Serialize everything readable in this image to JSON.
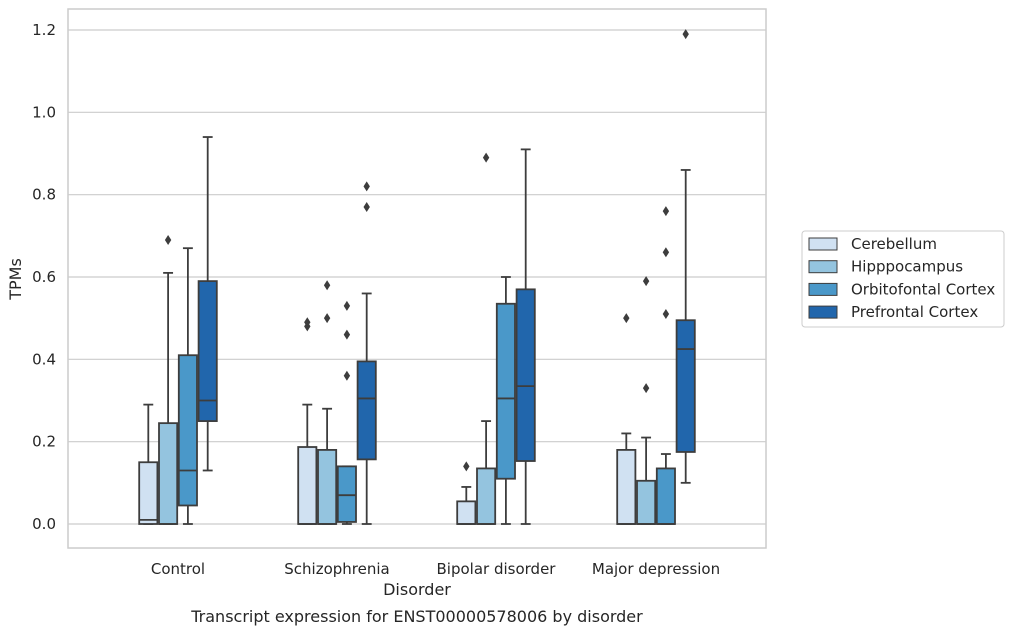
{
  "chart_data": {
    "type": "boxplot",
    "title": "",
    "caption": "Transcript expression for ENST00000578006 by disorder",
    "xlabel": "Disorder",
    "ylabel": "TPMs",
    "ylim": [
      -0.06,
      1.25
    ],
    "yticks": [
      "0.0",
      "0.2",
      "0.4",
      "0.6",
      "0.8",
      "1.0",
      "1.2"
    ],
    "categories": [
      "Control",
      "Schizophrenia",
      "Bipolar disorder",
      "Major depression"
    ],
    "grid": "horizontal",
    "legend_position": "right",
    "series": [
      {
        "name": "Cerebellum",
        "color": "#d0e1f2",
        "boxes": [
          {
            "wlo": 0.0,
            "q1": 0.0,
            "med": 0.01,
            "q3": 0.15,
            "whi": 0.29,
            "outliers": []
          },
          {
            "wlo": 0.0,
            "q1": 0.0,
            "med": 0.0,
            "q3": 0.187,
            "whi": 0.29,
            "outliers": [
              0.48,
              0.49
            ]
          },
          {
            "wlo": 0.0,
            "q1": 0.0,
            "med": 0.0,
            "q3": 0.055,
            "whi": 0.09,
            "outliers": [
              0.14
            ]
          },
          {
            "wlo": 0.0,
            "q1": 0.0,
            "med": 0.0,
            "q3": 0.18,
            "whi": 0.22,
            "outliers": [
              0.5
            ]
          }
        ]
      },
      {
        "name": "Hipppocampus",
        "color": "#94c4df",
        "boxes": [
          {
            "wlo": 0.0,
            "q1": 0.0,
            "med": 0.0,
            "q3": 0.245,
            "whi": 0.61,
            "outliers": [
              0.69
            ]
          },
          {
            "wlo": 0.0,
            "q1": 0.0,
            "med": 0.0,
            "q3": 0.18,
            "whi": 0.28,
            "outliers": [
              0.5,
              0.58
            ]
          },
          {
            "wlo": 0.0,
            "q1": 0.0,
            "med": 0.0,
            "q3": 0.135,
            "whi": 0.25,
            "outliers": [
              0.89
            ]
          },
          {
            "wlo": 0.0,
            "q1": 0.0,
            "med": 0.0,
            "q3": 0.105,
            "whi": 0.21,
            "outliers": [
              0.33,
              0.59
            ]
          }
        ]
      },
      {
        "name": "Orbitofontal Cortex",
        "color": "#4a98c9",
        "boxes": [
          {
            "wlo": 0.0,
            "q1": 0.045,
            "med": 0.13,
            "q3": 0.41,
            "whi": 0.67,
            "outliers": []
          },
          {
            "wlo": 0.0,
            "q1": 0.005,
            "med": 0.07,
            "q3": 0.14,
            "whi": 0.14,
            "outliers": [
              0.36,
              0.46,
              0.53
            ]
          },
          {
            "wlo": 0.0,
            "q1": 0.11,
            "med": 0.305,
            "q3": 0.535,
            "whi": 0.6,
            "outliers": []
          },
          {
            "wlo": 0.0,
            "q1": 0.0,
            "med": 0.0,
            "q3": 0.135,
            "whi": 0.17,
            "outliers": [
              0.51,
              0.66,
              0.76
            ]
          }
        ]
      },
      {
        "name": "Prefrontal Cortex",
        "color": "#2166ac",
        "boxes": [
          {
            "wlo": 0.13,
            "q1": 0.25,
            "med": 0.3,
            "q3": 0.59,
            "whi": 0.94,
            "outliers": []
          },
          {
            "wlo": 0.0,
            "q1": 0.157,
            "med": 0.305,
            "q3": 0.395,
            "whi": 0.56,
            "outliers": [
              0.77,
              0.82
            ]
          },
          {
            "wlo": 0.0,
            "q1": 0.153,
            "med": 0.335,
            "q3": 0.57,
            "whi": 0.91,
            "outliers": []
          },
          {
            "wlo": 0.1,
            "q1": 0.175,
            "med": 0.425,
            "q3": 0.495,
            "whi": 0.86,
            "outliers": [
              1.19
            ]
          }
        ]
      }
    ]
  }
}
